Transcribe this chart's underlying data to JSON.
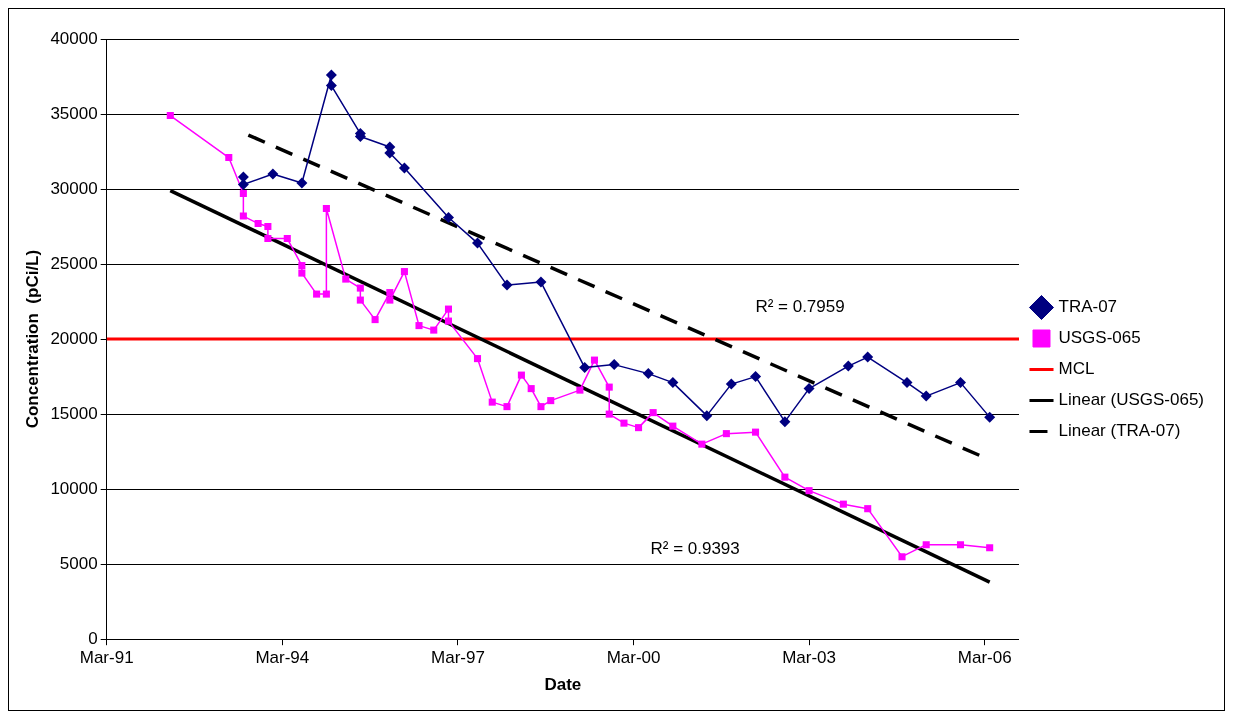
{
  "chart_data": {
    "type": "line",
    "xlabel": "Date",
    "ylabel": "Concentration  (pCi/L)",
    "xlim": [
      "1991-03",
      "2006-10"
    ],
    "xticks": [
      {
        "value": "1991-03",
        "label": "Mar-91"
      },
      {
        "value": "1994-03",
        "label": "Mar-94"
      },
      {
        "value": "1997-03",
        "label": "Mar-97"
      },
      {
        "value": "2000-03",
        "label": "Mar-00"
      },
      {
        "value": "2003-03",
        "label": "Mar-03"
      },
      {
        "value": "2006-03",
        "label": "Mar-06"
      }
    ],
    "ylim": [
      0,
      40000
    ],
    "yticks": [
      0,
      5000,
      10000,
      15000,
      20000,
      25000,
      30000,
      35000,
      40000
    ],
    "grid": "y",
    "legend": "right",
    "series": [
      {
        "name": "TRA-07",
        "color": "#000080",
        "marker": "diamond",
        "x": [
          "1993-07",
          "1993-07",
          "1994-01",
          "1994-07",
          "1995-01",
          "1995-01",
          "1995-07",
          "1995-07",
          "1996-01",
          "1996-01",
          "1996-04",
          "1997-01",
          "1997-07",
          "1998-01",
          "1998-08",
          "1999-05",
          "1999-11",
          "2000-06",
          "2000-11",
          "2001-06",
          "2001-11",
          "2002-04",
          "2002-10",
          "2003-03",
          "2003-11",
          "2004-03",
          "2004-11",
          "2005-03",
          "2005-10",
          "2006-04"
        ],
        "values": [
          30800,
          30300,
          31000,
          30400,
          37600,
          36900,
          33700,
          33500,
          32800,
          32400,
          31400,
          28100,
          26400,
          23600,
          23800,
          18100,
          18300,
          17700,
          17100,
          14900,
          17000,
          17500,
          14500,
          16700,
          18200,
          18800,
          17100,
          16200,
          17100,
          14800
        ]
      },
      {
        "name": "USGS-065",
        "color": "#ff00ff",
        "marker": "square",
        "x": [
          "1992-04",
          "1993-04",
          "1993-07",
          "1993-07",
          "1993-10",
          "1993-12",
          "1993-12",
          "1994-04",
          "1994-07",
          "1994-07",
          "1994-10",
          "1994-12",
          "1994-12",
          "1995-04",
          "1995-07",
          "1995-07",
          "1995-10",
          "1996-01",
          "1996-01",
          "1996-04",
          "1996-07",
          "1996-10",
          "1997-01",
          "1997-01",
          "1997-07",
          "1997-10",
          "1998-01",
          "1998-04",
          "1998-06",
          "1998-08",
          "1998-10",
          "1999-04",
          "1999-07",
          "1999-10",
          "1999-10",
          "2000-01",
          "2000-04",
          "2000-07",
          "2000-11",
          "2001-05",
          "2001-10",
          "2002-04",
          "2002-10",
          "2003-03",
          "2003-10",
          "2004-03",
          "2004-10",
          "2005-03",
          "2005-10",
          "2006-04"
        ],
        "values": [
          34900,
          32100,
          29700,
          28200,
          27700,
          27500,
          26700,
          26700,
          24900,
          24400,
          23000,
          23000,
          28700,
          24000,
          23400,
          22600,
          21300,
          23100,
          22600,
          24500,
          20900,
          20600,
          22000,
          21200,
          18700,
          15800,
          15500,
          17600,
          16700,
          15500,
          15900,
          16600,
          18600,
          16800,
          15000,
          14400,
          14100,
          15100,
          14200,
          13000,
          13700,
          13800,
          10800,
          9900,
          9000,
          8700,
          5500,
          6300,
          6300,
          6100
        ]
      },
      {
        "name": "Linear (USGS-065)",
        "type": "line",
        "color": "#000000",
        "marker": "none",
        "line_style": "solid",
        "x": [
          "1992-04",
          "2006-04"
        ],
        "values": [
          29900,
          3800
        ]
      },
      {
        "name": "Linear (TRA-07)",
        "type": "line",
        "color": "#000000",
        "marker": "none",
        "line_style": "dashed",
        "x": [
          "1993-08",
          "2006-03"
        ],
        "values": [
          33600,
          12100
        ]
      }
    ],
    "ref_lines": [
      {
        "axis": "y",
        "value": 20000,
        "label": "MCL",
        "color": "#ff0000",
        "line_style": "solid"
      }
    ],
    "annotations": [
      "R² = 0.7959",
      "R² = 0.9393"
    ]
  }
}
